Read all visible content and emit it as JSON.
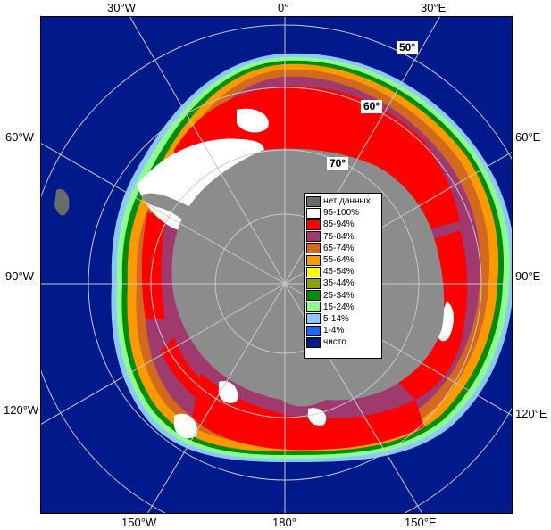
{
  "map": {
    "colors": {
      "ocean": "#001a8c",
      "land": "#8c8c8c",
      "nodata": "#6a6a6a",
      "ice_95_100": "#ffffff",
      "ice_85_94": "#ff0000",
      "ice_75_84": "#a0396e",
      "ice_65_74": "#d2691e",
      "ice_55_64": "#ff9900",
      "ice_45_54": "#ffff00",
      "ice_35_44": "#8ca000",
      "ice_25_34": "#008c00",
      "ice_15_24": "#8cff8c",
      "ice_5_14": "#8cc8ff",
      "ice_1_4": "#1e64ff",
      "grid": "#c8c8c8"
    },
    "longitude_labels": {
      "top_30w": "30°W",
      "top_0": "0°",
      "top_30e": "30°E",
      "left_60w": "60°W",
      "right_60e": "60°E",
      "left_90w": "90°W",
      "right_90e": "90°E",
      "left_120w": "120°W",
      "right_120e": "120°E",
      "bottom_150w": "150°W",
      "bottom_180": "180°",
      "bottom_150e": "150°E"
    },
    "latitude_labels": {
      "lat50": "50°",
      "lat60": "60°",
      "lat70": "70°"
    }
  },
  "legend": {
    "items": [
      {
        "label": "нет данных",
        "color": "#6a6a6a"
      },
      {
        "label": "95-100%",
        "color": "#ffffff"
      },
      {
        "label": "85-94%",
        "color": "#ff0000"
      },
      {
        "label": "75-84%",
        "color": "#a0396e"
      },
      {
        "label": "65-74%",
        "color": "#d2691e"
      },
      {
        "label": "55-64%",
        "color": "#ff9900"
      },
      {
        "label": "45-54%",
        "color": "#ffff00"
      },
      {
        "label": "35-44%",
        "color": "#8ca000"
      },
      {
        "label": "25-34%",
        "color": "#008c00"
      },
      {
        "label": "15-24%",
        "color": "#8cff8c"
      },
      {
        "label": "5-14%",
        "color": "#8cc8ff"
      },
      {
        "label": "1-4%",
        "color": "#1e64ff"
      },
      {
        "label": "чисто",
        "color": "#001a8c"
      }
    ]
  }
}
